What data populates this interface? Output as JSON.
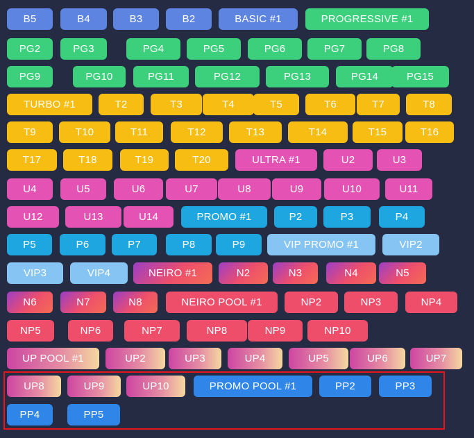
{
  "highlight_color": "#e8141e",
  "palette": {
    "basic": "#5c84e0",
    "pg": "#3ccf7c",
    "turbo": "#f7bd12",
    "ultra": "#e452b3",
    "promo": "#1ea6e0",
    "vip": "#86c4f4",
    "neiro": "#ee4f6b",
    "np": "#ef4e6b",
    "up": "#e58ea3",
    "pp": "#2f86e8"
  },
  "rows": [
    [
      {
        "label": "B5",
        "group": "basic"
      },
      {
        "label": "B4",
        "group": "basic"
      },
      {
        "label": "B3",
        "group": "basic"
      },
      {
        "label": "B2",
        "group": "basic"
      },
      {
        "label": "BASIC #1",
        "group": "basic"
      },
      {
        "label": "PROGRESSIVE #1",
        "group": "pg"
      }
    ],
    [
      {
        "label": "PG2",
        "group": "pg"
      },
      {
        "label": "PG3",
        "group": "pg"
      },
      {
        "label": "PG4",
        "group": "pg"
      },
      {
        "label": "PG5",
        "group": "pg"
      },
      {
        "label": "PG6",
        "group": "pg"
      },
      {
        "label": "PG7",
        "group": "pg"
      },
      {
        "label": "PG8",
        "group": "pg"
      }
    ],
    [
      {
        "label": "PG9",
        "group": "pg"
      },
      {
        "label": "PG10",
        "group": "pg"
      },
      {
        "label": "PG11",
        "group": "pg"
      },
      {
        "label": "PG12",
        "group": "pg"
      },
      {
        "label": "PG13",
        "group": "pg"
      },
      {
        "label": "PG14",
        "group": "pg"
      },
      {
        "label": "PG15",
        "group": "pg"
      }
    ],
    [
      {
        "label": "TURBO #1",
        "group": "turbo"
      },
      {
        "label": "T2",
        "group": "turbo"
      },
      {
        "label": "T3",
        "group": "turbo"
      },
      {
        "label": "T4",
        "group": "turbo"
      },
      {
        "label": "T5",
        "group": "turbo"
      },
      {
        "label": "T6",
        "group": "turbo"
      },
      {
        "label": "T7",
        "group": "turbo"
      },
      {
        "label": "T8",
        "group": "turbo"
      }
    ],
    [
      {
        "label": "T9",
        "group": "turbo"
      },
      {
        "label": "T10",
        "group": "turbo"
      },
      {
        "label": "T11",
        "group": "turbo"
      },
      {
        "label": "T12",
        "group": "turbo"
      },
      {
        "label": "T13",
        "group": "turbo"
      },
      {
        "label": "T14",
        "group": "turbo"
      },
      {
        "label": "T15",
        "group": "turbo"
      },
      {
        "label": "T16",
        "group": "turbo"
      }
    ],
    [
      {
        "label": "T17",
        "group": "turbo"
      },
      {
        "label": "T18",
        "group": "turbo"
      },
      {
        "label": "T19",
        "group": "turbo"
      },
      {
        "label": "T20",
        "group": "turbo"
      },
      {
        "label": "ULTRA #1",
        "group": "ultra"
      },
      {
        "label": "U2",
        "group": "ultra"
      },
      {
        "label": "U3",
        "group": "ultra"
      }
    ],
    [
      {
        "label": "U4",
        "group": "ultra"
      },
      {
        "label": "U5",
        "group": "ultra"
      },
      {
        "label": "U6",
        "group": "ultra"
      },
      {
        "label": "U7",
        "group": "ultra"
      },
      {
        "label": "U8",
        "group": "ultra"
      },
      {
        "label": "U9",
        "group": "ultra"
      },
      {
        "label": "U10",
        "group": "ultra"
      },
      {
        "label": "U11",
        "group": "ultra"
      }
    ],
    [
      {
        "label": "U12",
        "group": "ultra"
      },
      {
        "label": "U13",
        "group": "ultra"
      },
      {
        "label": "U14",
        "group": "ultra"
      },
      {
        "label": "PROMO #1",
        "group": "promo"
      },
      {
        "label": "P2",
        "group": "promo"
      },
      {
        "label": "P3",
        "group": "promo"
      },
      {
        "label": "P4",
        "group": "promo"
      }
    ],
    [
      {
        "label": "P5",
        "group": "promo"
      },
      {
        "label": "P6",
        "group": "promo"
      },
      {
        "label": "P7",
        "group": "promo"
      },
      {
        "label": "P8",
        "group": "promo"
      },
      {
        "label": "P9",
        "group": "promo"
      },
      {
        "label": "VIP PROMO #1",
        "group": "vip"
      },
      {
        "label": "VIP2",
        "group": "vip"
      }
    ],
    [
      {
        "label": "VIP3",
        "group": "vip"
      },
      {
        "label": "VIP4",
        "group": "vip"
      },
      {
        "label": "NEIRO #1",
        "group": "neiro"
      },
      {
        "label": "N2",
        "group": "neiro"
      },
      {
        "label": "N3",
        "group": "neiro"
      },
      {
        "label": "N4",
        "group": "neiro"
      },
      {
        "label": "N5",
        "group": "neiro"
      }
    ],
    [
      {
        "label": "N6",
        "group": "neiro"
      },
      {
        "label": "N7",
        "group": "neiro"
      },
      {
        "label": "N8",
        "group": "neiro"
      },
      {
        "label": "NEIRO POOL #1",
        "group": "np"
      },
      {
        "label": "NP2",
        "group": "np"
      },
      {
        "label": "NP3",
        "group": "np"
      },
      {
        "label": "NP4",
        "group": "np"
      }
    ],
    [
      {
        "label": "NP5",
        "group": "np"
      },
      {
        "label": "NP6",
        "group": "np"
      },
      {
        "label": "NP7",
        "group": "np"
      },
      {
        "label": "NP8",
        "group": "np"
      },
      {
        "label": "NP9",
        "group": "np"
      },
      {
        "label": "NP10",
        "group": "np"
      }
    ],
    [
      {
        "label": "UP POOL #1",
        "group": "up"
      },
      {
        "label": "UP2",
        "group": "up"
      },
      {
        "label": "UP3",
        "group": "up"
      },
      {
        "label": "UP4",
        "group": "up"
      },
      {
        "label": "UP5",
        "group": "up"
      },
      {
        "label": "UP6",
        "group": "up"
      },
      {
        "label": "UP7",
        "group": "up"
      }
    ],
    [
      {
        "label": "UP8",
        "group": "up"
      },
      {
        "label": "UP9",
        "group": "up"
      },
      {
        "label": "UP10",
        "group": "up"
      },
      {
        "label": "PROMO POOL #1",
        "group": "pp"
      },
      {
        "label": "PP2",
        "group": "pp"
      },
      {
        "label": "PP3",
        "group": "pp"
      }
    ],
    [
      {
        "label": "PP4",
        "group": "pp"
      },
      {
        "label": "PP5",
        "group": "pp"
      }
    ]
  ]
}
